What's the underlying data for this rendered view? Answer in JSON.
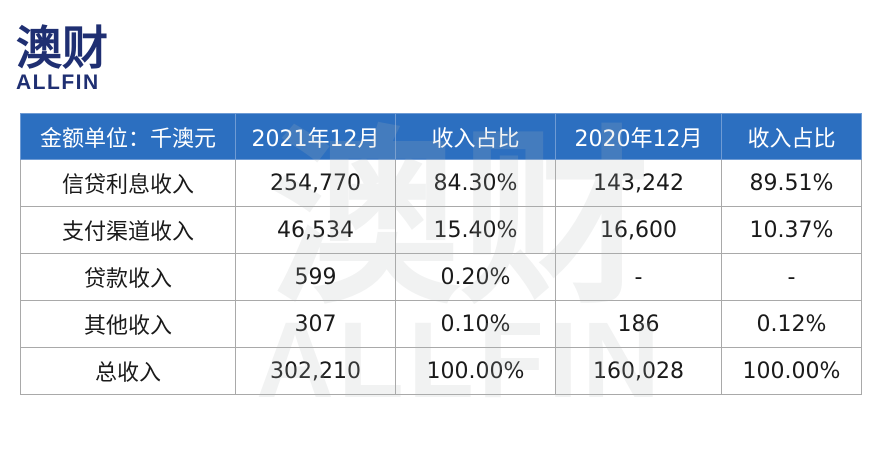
{
  "logo": {
    "cn": "澳财",
    "en": "ALLFIN"
  },
  "watermark": {
    "cn": "澳财",
    "en": "ALLFIN"
  },
  "table": {
    "headers": [
      "金额单位：千澳元",
      "2021年12月",
      "收入占比",
      "2020年12月",
      "收入占比"
    ],
    "rows": [
      [
        "信贷利息收入",
        "254,770",
        "84.30%",
        "143,242",
        "89.51%"
      ],
      [
        "支付渠道收入",
        "46,534",
        "15.40%",
        "16,600",
        "10.37%"
      ],
      [
        "贷款收入",
        "599",
        "0.20%",
        "-",
        "-"
      ],
      [
        "其他收入",
        "307",
        "0.10%",
        "186",
        "0.12%"
      ],
      [
        "总收入",
        "302,210",
        "100.00%",
        "160,028",
        "100.00%"
      ]
    ]
  },
  "colors": {
    "header_bg": "#2c6fc0",
    "brand_navy": "#1f2f72",
    "brand_red": "#d8343a"
  }
}
